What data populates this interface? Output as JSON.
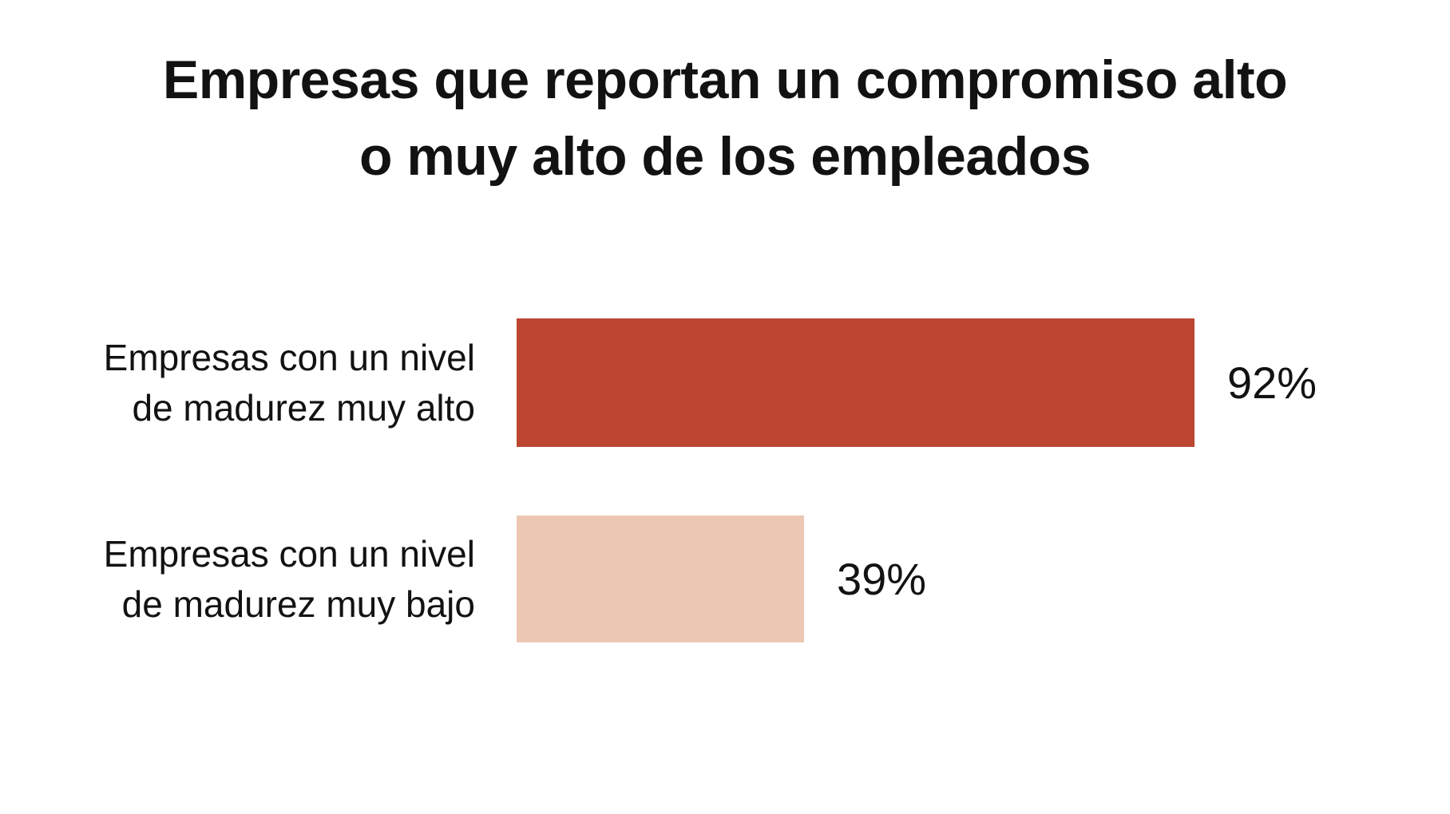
{
  "title": {
    "line1": "Empresas que reportan un compromiso alto",
    "line2": "o muy alto de los empleados"
  },
  "chart_data": {
    "type": "bar",
    "orientation": "horizontal",
    "title": "Empresas que reportan un compromiso alto o muy alto de los empleados",
    "categories": [
      "Empresas con un nivel de madurez muy alto",
      "Empresas con un nivel de madurez muy bajo"
    ],
    "values": [
      92,
      39
    ],
    "value_labels": [
      "92%",
      "39%"
    ],
    "xlim": [
      0,
      100
    ],
    "unit": "%",
    "grid": false,
    "legend": false,
    "bar_colors": [
      "#BC4631",
      "#ECC7B4"
    ]
  },
  "rows": [
    {
      "label_display": "Empresas con un nivel\nde madurez muy alto",
      "value": 92,
      "value_label": "92%",
      "color": "#BC4631"
    },
    {
      "label_display": "Empresas con un nivel\nde madurez muy bajo",
      "value": 39,
      "value_label": "39%",
      "color": "#ECC7B4"
    }
  ],
  "colors": {
    "background": "#FFFFFF",
    "text": "#121212",
    "bar_high_maturity": "#BC4631",
    "bar_low_maturity": "#ECC7B4"
  }
}
